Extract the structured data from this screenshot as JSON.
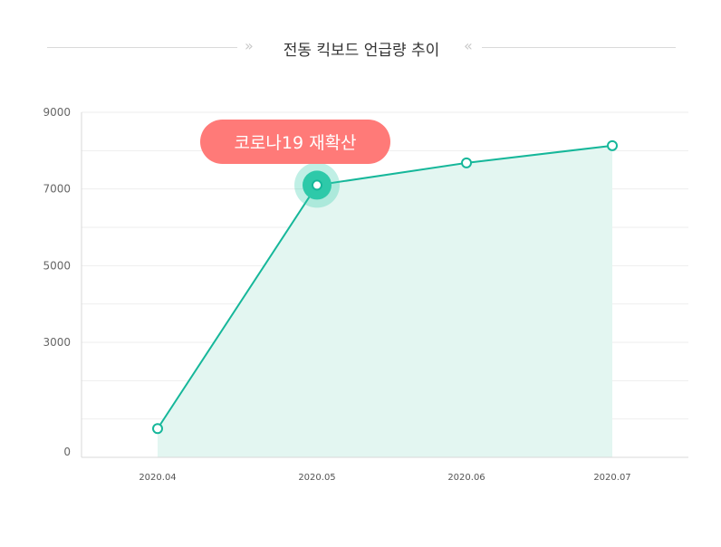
{
  "title": {
    "text": "전동 킥보드 언급량 추이",
    "arrow_left": "»",
    "arrow_right": "«"
  },
  "colors": {
    "line": "#16b79a",
    "area": "#e3f6f1",
    "highlight": "#2ec9a9",
    "callout": "#ff7a78",
    "grid": "#eeeeee",
    "axis": "#d8d8d8"
  },
  "chart_data": {
    "type": "area",
    "x": [
      "2020.04",
      "2020.05",
      "2020.06",
      "2020.07"
    ],
    "values": [
      750,
      7100,
      7680,
      8130
    ],
    "ylim": [
      0,
      9000
    ],
    "yticks": [
      "0",
      "3000",
      "5000",
      "7000",
      "9000"
    ],
    "grid": true,
    "highlight_index": 1,
    "annotation": "코로나19 재확산"
  }
}
